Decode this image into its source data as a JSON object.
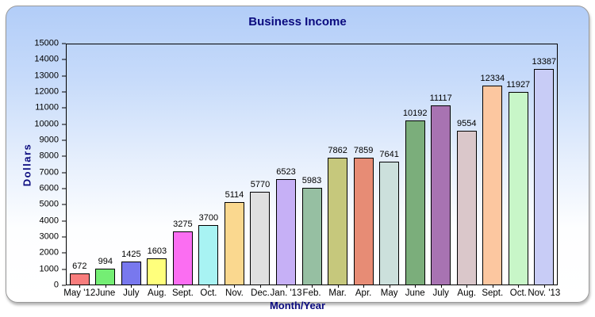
{
  "chart_data": {
    "type": "bar",
    "title": "Business Income",
    "xlabel": "Month/Year",
    "ylabel": "Dollars",
    "ylim": [
      0,
      15000
    ],
    "ytick_step": 1000,
    "grid": false,
    "legend_position": "none",
    "categories": [
      "May '12",
      "June",
      "July",
      "Aug.",
      "Sept.",
      "Oct.",
      "Nov.",
      "Dec.",
      "Jan. '13",
      "Feb.",
      "Mar.",
      "Apr.",
      "May",
      "June",
      "July",
      "Aug.",
      "Sept.",
      "Oct.",
      "Nov. '13"
    ],
    "values": [
      672,
      994,
      1425,
      1603,
      3275,
      3700,
      5114,
      5770,
      6523,
      5983,
      7862,
      7859,
      7641,
      10192,
      11117,
      9554,
      12334,
      11927,
      13387
    ],
    "bar_colors": [
      "#f87d7d",
      "#74ee74",
      "#7878ee",
      "#ffff7c",
      "#fb6ef2",
      "#a8f3f3",
      "#fad88f",
      "#e0e0e0",
      "#c6b0f6",
      "#96bfa2",
      "#c6c87c",
      "#e78c75",
      "#cce0dc",
      "#7bae7b",
      "#a873b2",
      "#dac7ca",
      "#fcc7a0",
      "#c8f6c8",
      "#c8ccf6"
    ]
  },
  "colors": {
    "title_text": "#0a0a7e",
    "axis_title_text": "#0a0a7e",
    "tick_text": "#000000",
    "bar_border": "#000000",
    "panel_border": "#999999",
    "panel_gradient_top": "#b2cdf8",
    "panel_gradient_bottom": "#ffffff"
  }
}
